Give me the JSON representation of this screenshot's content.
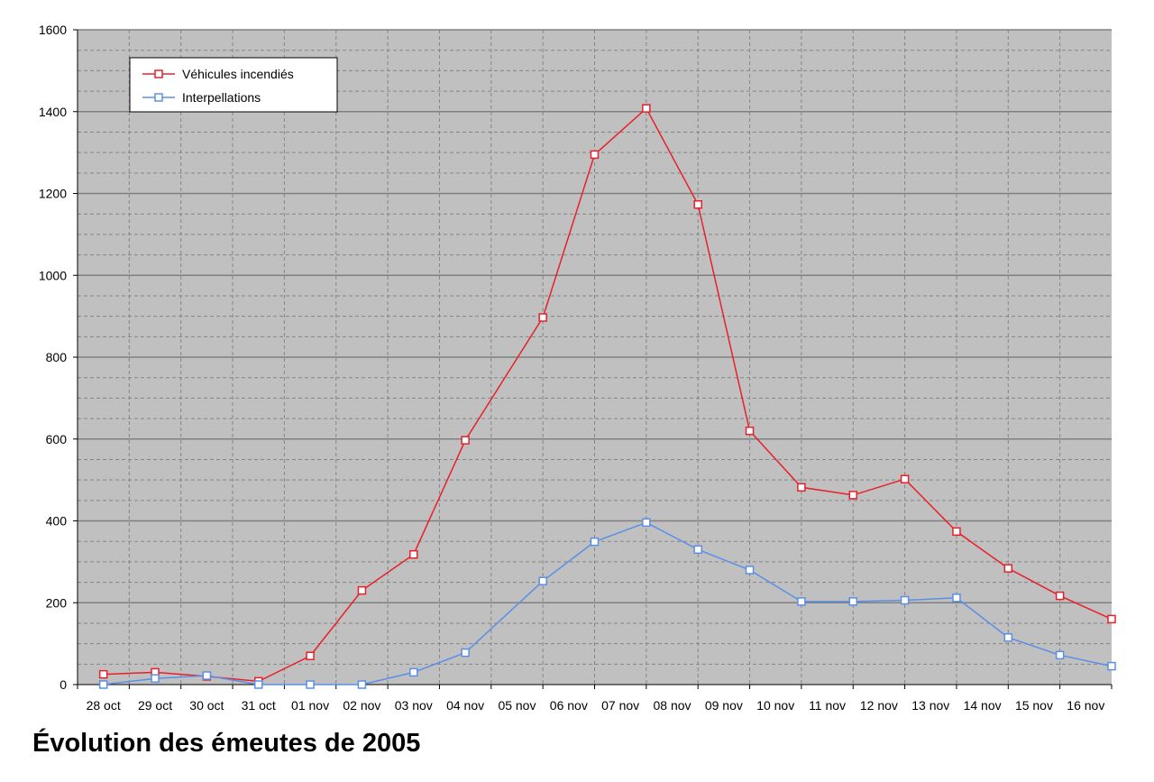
{
  "caption": "Évolution des émeutes de 2005",
  "chart_data": {
    "type": "line",
    "title": "",
    "xlabel": "",
    "ylabel": "",
    "ylim": [
      0,
      1600
    ],
    "yticks": [
      0,
      200,
      400,
      600,
      800,
      1000,
      1200,
      1400,
      1600
    ],
    "grid": true,
    "legend": "top-left",
    "categories": [
      "28 oct",
      "29 oct",
      "30 oct",
      "31 oct",
      "01 nov",
      "02 nov",
      "03 nov",
      "04 nov",
      "05 nov",
      "06 nov",
      "07 nov",
      "08 nov",
      "09 nov",
      "10 nov",
      "11 nov",
      "12 nov",
      "13 nov",
      "14 nov",
      "15 nov",
      "16 nov"
    ],
    "series": [
      {
        "name": "Véhicules incendiés",
        "color": "#e8202a",
        "x_offset": [
          0,
          0,
          0,
          0,
          0,
          0,
          0,
          0,
          0.5,
          0.5,
          0.5,
          0.5,
          0.5,
          0.5,
          0.5,
          0.5,
          0.5,
          0.5,
          0.5,
          0.5
        ],
        "values": [
          25,
          30,
          20,
          8,
          70,
          230,
          318,
          597,
          897,
          1295,
          1408,
          1173,
          620,
          482,
          463,
          502,
          374,
          284,
          217,
          160
        ]
      },
      {
        "name": "Interpellations",
        "color": "#5b8fe6",
        "x_offset": [
          0,
          0,
          0,
          0,
          0,
          0,
          0,
          0,
          0.5,
          0.5,
          0.5,
          0.5,
          0.5,
          0.5,
          0.5,
          0.5,
          0.5,
          0.5,
          0.5,
          0.5
        ],
        "values": [
          0,
          15,
          22,
          0,
          0,
          0,
          30,
          78,
          253,
          349,
          396,
          330,
          280,
          203,
          203,
          206,
          212,
          115,
          72,
          45
        ]
      }
    ]
  }
}
